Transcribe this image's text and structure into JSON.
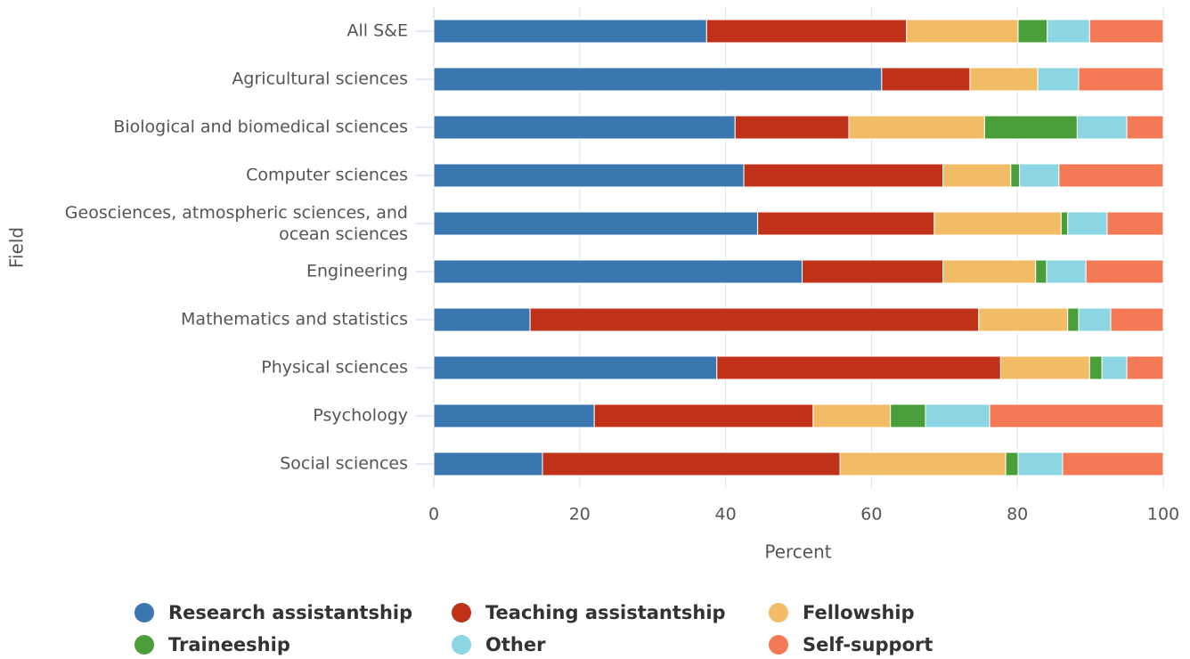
{
  "chart_data": {
    "type": "stacked-barh",
    "x_label": "Percent",
    "y_label": "Field",
    "categories": [
      "All S&E",
      "Agricultural sciences",
      "Biological and biomedical sciences",
      "Computer sciences",
      "Geosciences, atmospheric sciences, and ocean sciences",
      "Engineering",
      "Mathematics and statistics",
      "Physical sciences",
      "Psychology",
      "Social sciences"
    ],
    "series": [
      {
        "name": "Research assistantship",
        "color": "#3a76b0",
        "values": [
          37.4,
          61.4,
          41.3,
          42.5,
          44.4,
          50.5,
          13.2,
          38.8,
          22.0,
          14.9
        ]
      },
      {
        "name": "Teaching assistantship",
        "color": "#c03217",
        "values": [
          27.4,
          12.1,
          15.6,
          27.3,
          24.2,
          19.3,
          61.5,
          38.9,
          30.0,
          40.8
        ]
      },
      {
        "name": "Fellowship",
        "color": "#f2bc66",
        "values": [
          15.3,
          9.3,
          18.6,
          9.3,
          17.4,
          12.7,
          12.2,
          12.2,
          10.6,
          22.7
        ]
      },
      {
        "name": "Traineeship",
        "color": "#4a9e3a",
        "values": [
          4.0,
          0,
          12.7,
          1.2,
          0.9,
          1.5,
          1.5,
          1.7,
          4.8,
          1.7
        ]
      },
      {
        "name": "Other",
        "color": "#8bd6e2",
        "values": [
          5.8,
          5.6,
          6.8,
          5.4,
          5.4,
          5.4,
          4.4,
          3.4,
          8.8,
          6.1
        ]
      },
      {
        "name": "Self-support",
        "color": "#f47a55",
        "values": [
          10.1,
          11.6,
          5.0,
          14.3,
          7.7,
          10.6,
          7.2,
          5.0,
          23.8,
          13.8
        ]
      }
    ],
    "xlim": [
      0,
      100
    ],
    "xticks": [
      0,
      20,
      40,
      60,
      80,
      100
    ],
    "grid": true,
    "legend": "bottom"
  }
}
